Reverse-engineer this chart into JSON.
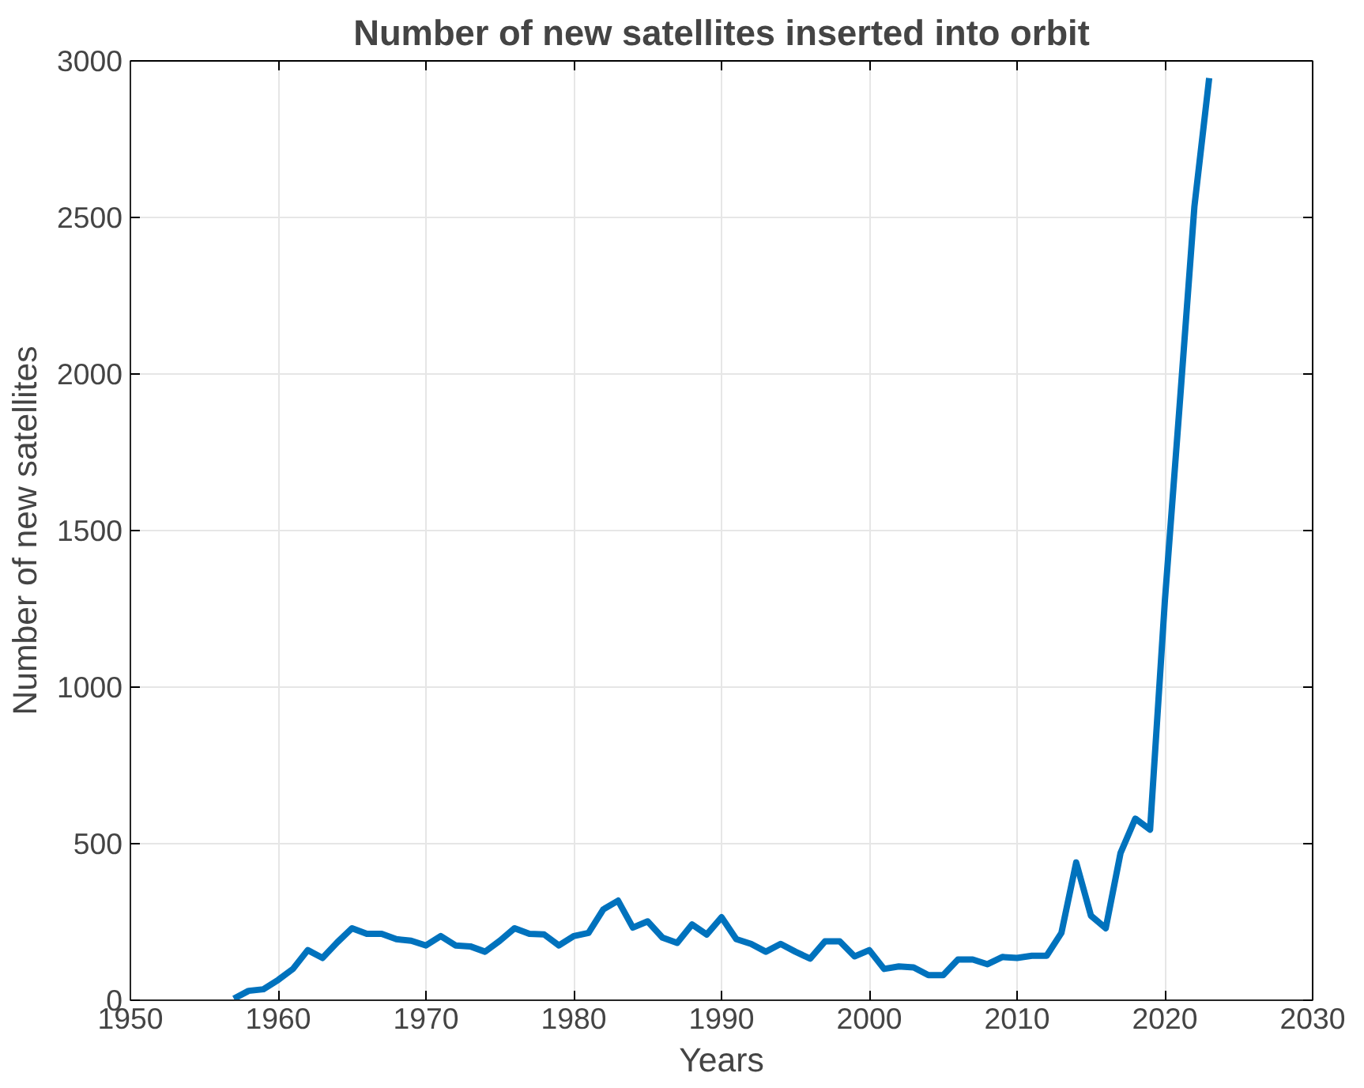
{
  "chart_data": {
    "type": "line",
    "title": "Number of new satellites inserted into orbit",
    "xlabel": "Years",
    "ylabel": "Number of new satellites",
    "x": [
      1957,
      1958,
      1959,
      1960,
      1961,
      1962,
      1963,
      1964,
      1965,
      1966,
      1967,
      1968,
      1969,
      1970,
      1971,
      1972,
      1973,
      1974,
      1975,
      1976,
      1977,
      1978,
      1979,
      1980,
      1981,
      1982,
      1983,
      1984,
      1985,
      1986,
      1987,
      1988,
      1989,
      1990,
      1991,
      1992,
      1993,
      1994,
      1995,
      1996,
      1997,
      1998,
      1999,
      2000,
      2001,
      2002,
      2003,
      2004,
      2005,
      2006,
      2007,
      2008,
      2009,
      2010,
      2011,
      2012,
      2013,
      2014,
      2015,
      2016,
      2017,
      2018,
      2019,
      2020,
      2021,
      2022,
      2023
    ],
    "series": [
      {
        "color": "#0072bd",
        "values": [
          5,
          30,
          35,
          65,
          100,
          160,
          135,
          185,
          230,
          212,
          212,
          195,
          190,
          175,
          205,
          175,
          172,
          155,
          190,
          230,
          212,
          210,
          175,
          205,
          215,
          290,
          318,
          232,
          252,
          200,
          183,
          242,
          210,
          265,
          195,
          180,
          155,
          180,
          155,
          133,
          188,
          188,
          140,
          160,
          100,
          108,
          105,
          80,
          80,
          130,
          130,
          115,
          138,
          135,
          142,
          142,
          215,
          440,
          270,
          230,
          470,
          580,
          545,
          1275,
          1900,
          2535,
          2945
        ]
      }
    ],
    "xlim": [
      1950,
      2030
    ],
    "xticks": [
      1950,
      1960,
      1970,
      1980,
      1990,
      2000,
      2010,
      2020,
      2030
    ],
    "ylim": [
      0,
      3000
    ],
    "yticks": [
      0,
      500,
      1000,
      1500,
      2000,
      2500,
      3000
    ],
    "grid": true,
    "line_style": "solid"
  }
}
